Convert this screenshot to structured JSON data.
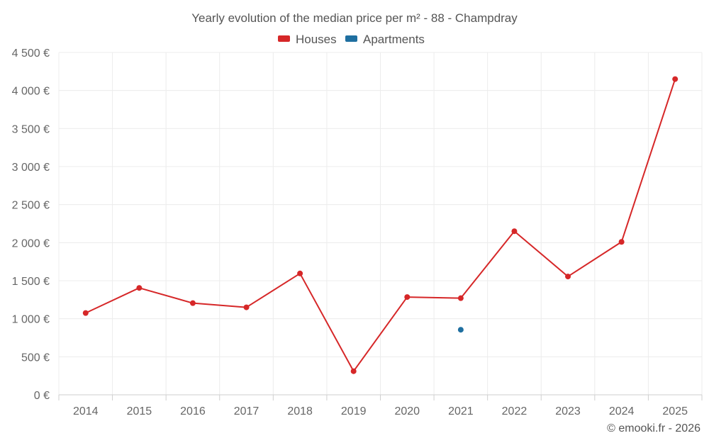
{
  "chart_data": {
    "type": "line",
    "title": "Yearly evolution of the median price per m² - 88 - Champdray",
    "categories": [
      "2014",
      "2015",
      "2016",
      "2017",
      "2018",
      "2019",
      "2020",
      "2021",
      "2022",
      "2023",
      "2024",
      "2025"
    ],
    "series": [
      {
        "name": "Houses",
        "color": "#d62728",
        "values": [
          1075,
          1405,
          1205,
          1150,
          1595,
          310,
          1285,
          1270,
          2150,
          1555,
          2010,
          4150
        ]
      },
      {
        "name": "Apartments",
        "color": "#1f6fa0",
        "values": [
          null,
          null,
          null,
          null,
          null,
          null,
          null,
          855,
          null,
          null,
          null,
          null
        ]
      }
    ],
    "ylim": [
      0,
      4500
    ],
    "yticks": [
      0,
      500,
      1000,
      1500,
      2000,
      2500,
      3000,
      3500,
      4000,
      4500
    ],
    "ytick_labels": [
      "0 €",
      "500 €",
      "1 000 €",
      "1 500 €",
      "2 000 €",
      "2 500 €",
      "3 000 €",
      "3 500 €",
      "4 000 €",
      "4 500 €"
    ],
    "xlabel": "",
    "ylabel": "",
    "grid": true,
    "legend_position": "top-center"
  },
  "credit": "© emooki.fr - 2026"
}
